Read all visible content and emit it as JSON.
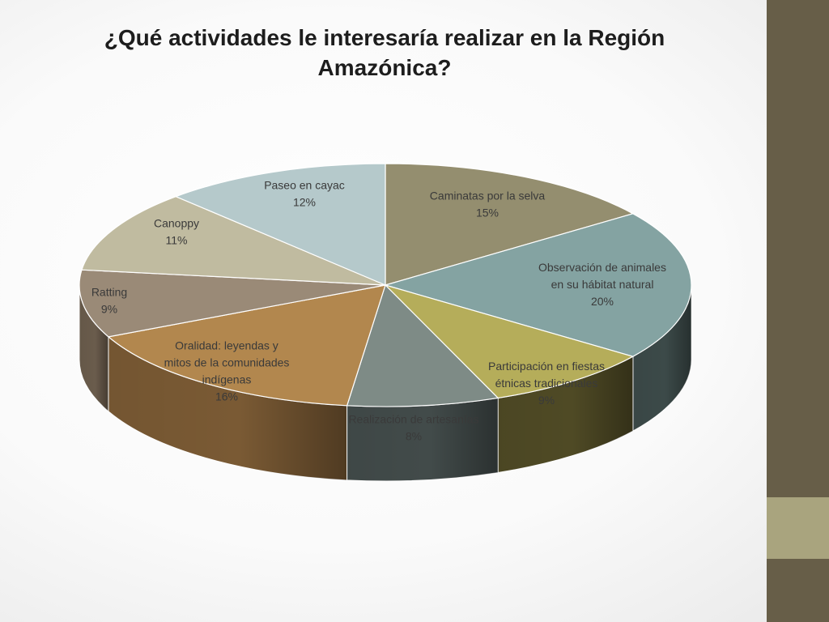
{
  "title": "¿Qué actividades le interesaría realizar en la Región Amazónica?",
  "colors": {
    "sidebar": "#675e48",
    "sidebar_accent": "#a9a47e"
  },
  "chart_data": {
    "type": "pie",
    "title": "¿Qué actividades le interesaría realizar en la Región Amazónica?",
    "slices": [
      {
        "label": [
          "Caminatas por la selva"
        ],
        "percent": "15%",
        "value": 15,
        "color": "#948e6f",
        "side": "#5f5a44"
      },
      {
        "label": [
          "Observación de animales",
          "en su hábitat natural"
        ],
        "percent": "20%",
        "value": 20,
        "color": "#84a3a2",
        "side": "#3c4a49"
      },
      {
        "label": [
          "Participación en fiestas",
          "étnicas tradicionales"
        ],
        "percent": "9%",
        "value": 9,
        "color": "#b5ad5a",
        "side": "#4f4a25"
      },
      {
        "label": [
          "Realización de artesanías"
        ],
        "percent": "8%",
        "value": 8,
        "color": "#7e8b86",
        "side": "#424b4a"
      },
      {
        "label": [
          "Oralidad: leyendas y",
          "mitos de la comunidades",
          "indígenas"
        ],
        "percent": "16%",
        "value": 16,
        "color": "#b2874e",
        "side": "#7a5a34"
      },
      {
        "label": [
          "Ratting"
        ],
        "percent": "9%",
        "value": 9,
        "color": "#9a8a77",
        "side": "#6a5c4c"
      },
      {
        "label": [
          "Canoppy"
        ],
        "percent": "11%",
        "value": 11,
        "color": "#c0bba0",
        "side": "#8a8570"
      },
      {
        "label": [
          "Paseo en cayac"
        ],
        "percent": "12%",
        "value": 12,
        "color": "#b5c9cb",
        "side": "#7d8e90"
      }
    ]
  }
}
